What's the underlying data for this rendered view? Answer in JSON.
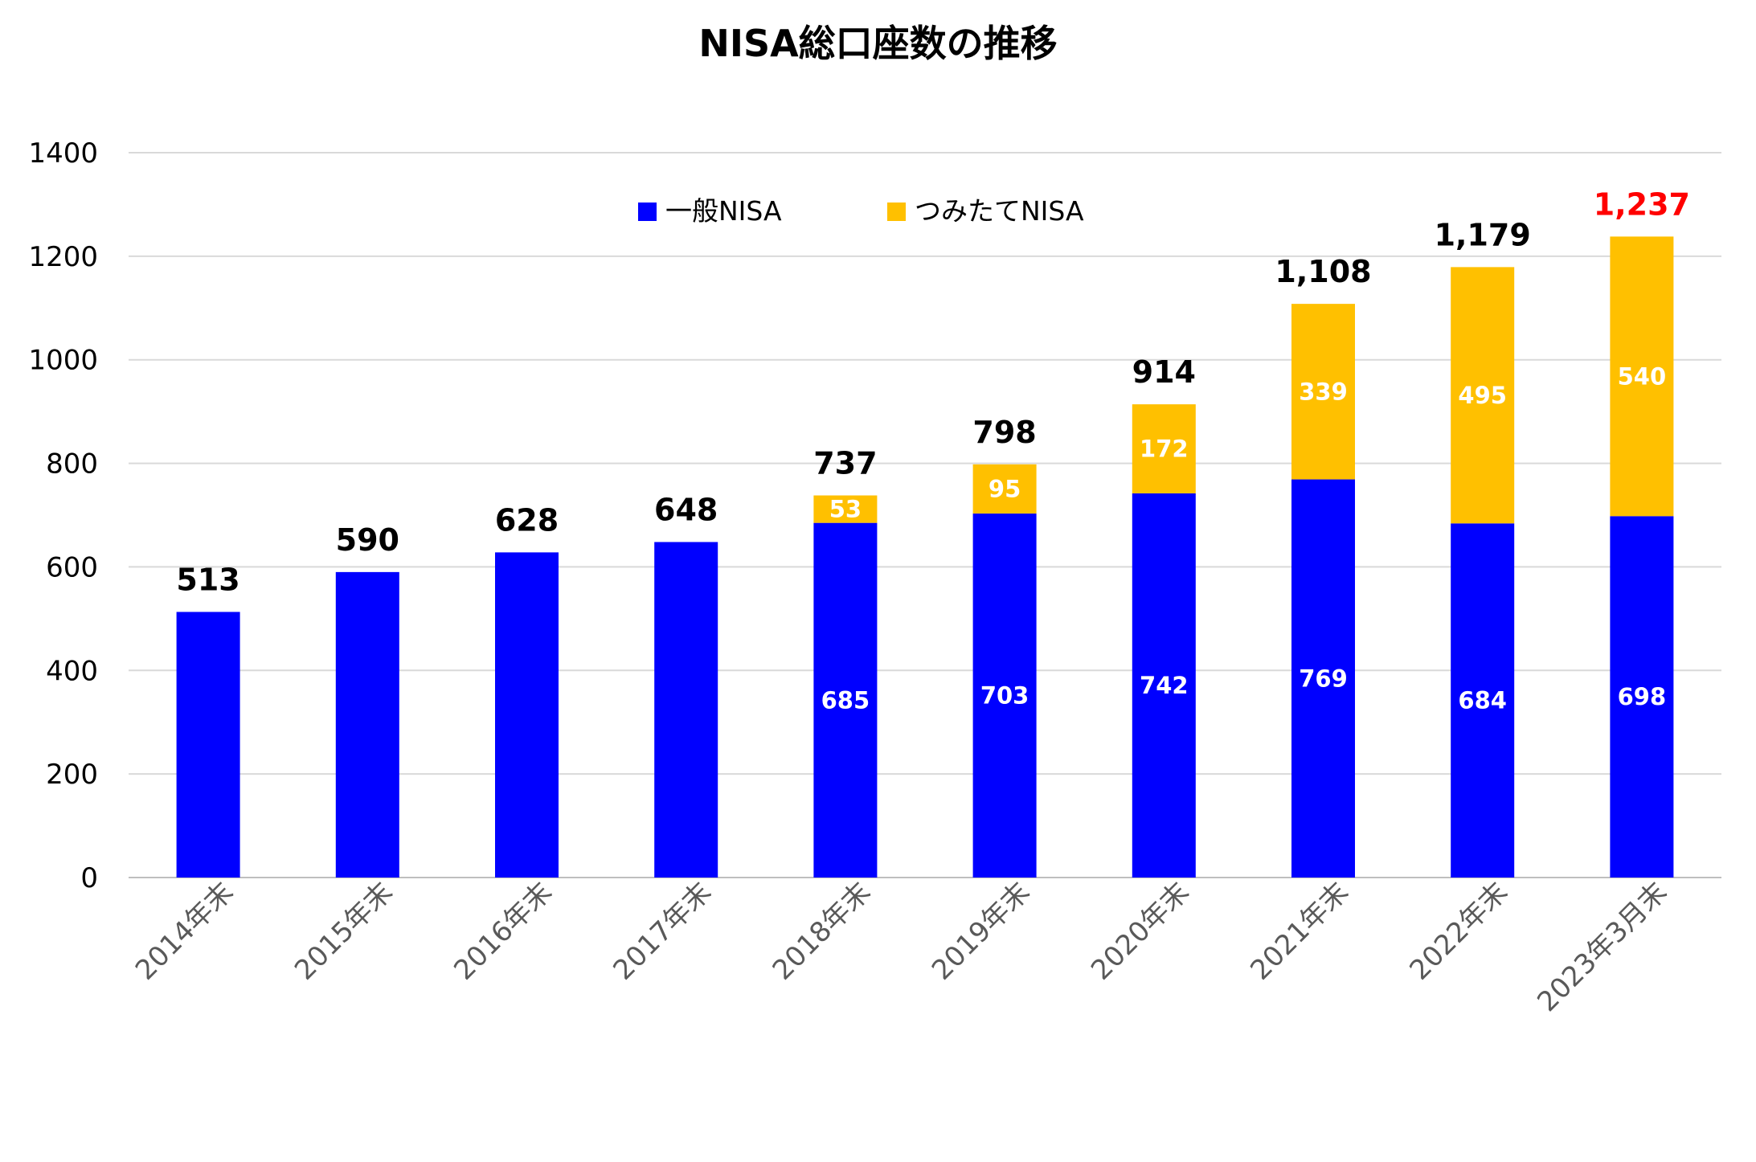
{
  "chart_data": {
    "type": "bar",
    "stacked": true,
    "title": "NISA総口座数の推移",
    "xlabel": "",
    "ylabel": "",
    "ylim": [
      0,
      1400
    ],
    "yticks": [
      0,
      200,
      400,
      600,
      800,
      1000,
      1200,
      1400
    ],
    "grid": true,
    "legend_position": "top-center",
    "categories": [
      "2014年末",
      "2015年末",
      "2016年末",
      "2017年末",
      "2018年末",
      "2019年末",
      "2020年末",
      "2021年末",
      "2022年末",
      "2023年3月末"
    ],
    "series": [
      {
        "name": "一般NISA",
        "color": "#0000ff",
        "values": [
          513,
          590,
          628,
          648,
          685,
          703,
          742,
          769,
          684,
          698
        ],
        "labels": [
          "",
          "",
          "",
          "",
          "685",
          "703",
          "742",
          "769",
          "684",
          "698"
        ]
      },
      {
        "name": "つみたてNISA",
        "color": "#ffc000",
        "values": [
          0,
          0,
          0,
          0,
          53,
          95,
          172,
          339,
          495,
          540
        ],
        "labels": [
          "",
          "",
          "",
          "",
          "53",
          "95",
          "172",
          "339",
          "495",
          "540"
        ]
      }
    ],
    "totals": [
      "513",
      "590",
      "628",
      "648",
      "737",
      "798",
      "914",
      "1,108",
      "1,179",
      "1,237"
    ],
    "total_colors": [
      "#000000",
      "#000000",
      "#000000",
      "#000000",
      "#000000",
      "#000000",
      "#000000",
      "#000000",
      "#000000",
      "#ff0000"
    ]
  }
}
